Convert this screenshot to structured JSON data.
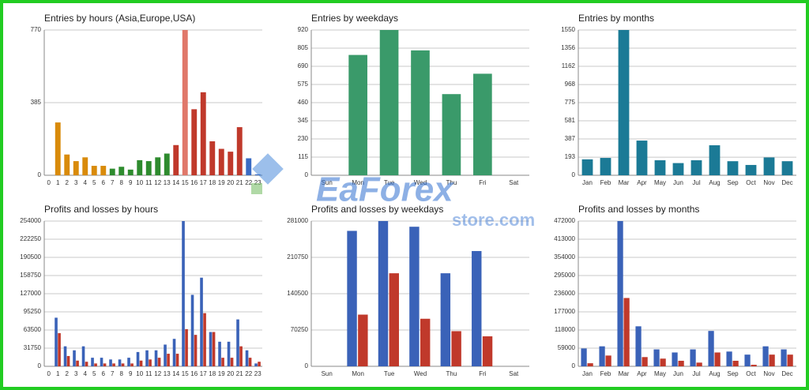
{
  "chart_data": [
    {
      "type": "bar",
      "title": "Entries by hours (Asia,Europe,USA)",
      "categories": [
        "0",
        "1",
        "2",
        "3",
        "4",
        "5",
        "6",
        "7",
        "8",
        "9",
        "10",
        "11",
        "12",
        "13",
        "14",
        "15",
        "16",
        "17",
        "18",
        "19",
        "20",
        "21",
        "22",
        "23"
      ],
      "values": [
        0,
        280,
        110,
        75,
        95,
        50,
        50,
        35,
        45,
        30,
        80,
        75,
        95,
        115,
        160,
        770,
        350,
        440,
        180,
        140,
        125,
        255,
        90,
        5
      ],
      "colors": [
        "#d98b0b",
        "#d98b0b",
        "#d98b0b",
        "#d98b0b",
        "#d98b0b",
        "#d98b0b",
        "#d98b0b",
        "#2e8b2e",
        "#2e8b2e",
        "#2e8b2e",
        "#2e8b2e",
        "#2e8b2e",
        "#2e8b2e",
        "#2e8b2e",
        "#c0392b",
        "#e0786a",
        "#c0392b",
        "#c0392b",
        "#c0392b",
        "#c0392b",
        "#c0392b",
        "#c0392b",
        "#3a6bc4",
        "#3a6bc4"
      ],
      "ylim": [
        0,
        770
      ],
      "yticks": [
        0,
        385,
        770
      ],
      "grid": true
    },
    {
      "type": "bar",
      "title": "Entries by weekdays",
      "categories": [
        "Sun",
        "Mon",
        "Tue",
        "Wed",
        "Thu",
        "Fri",
        "Sat"
      ],
      "values": [
        0,
        762,
        920,
        791,
        514,
        643,
        0
      ],
      "color": "#3a9a6a",
      "ylim": [
        0,
        920
      ],
      "yticks": [
        0,
        115,
        230,
        345,
        460,
        575,
        690,
        805,
        920
      ],
      "grid": true
    },
    {
      "type": "bar",
      "title": "Entries by months",
      "categories": [
        "Jan",
        "Feb",
        "Mar",
        "Apr",
        "May",
        "Jun",
        "Jul",
        "Aug",
        "Sep",
        "Oct",
        "Nov",
        "Dec"
      ],
      "values": [
        170,
        185,
        1550,
        370,
        160,
        130,
        160,
        320,
        150,
        110,
        190,
        150
      ],
      "color": "#1b7a96",
      "ylim": [
        0,
        1550
      ],
      "yticks": [
        0,
        193,
        387,
        581,
        775,
        968,
        1162,
        1356,
        1550
      ],
      "grid": true
    },
    {
      "type": "bar",
      "title": "Profits and losses by hours",
      "categories": [
        "0",
        "1",
        "2",
        "3",
        "4",
        "5",
        "6",
        "7",
        "8",
        "9",
        "10",
        "11",
        "12",
        "13",
        "14",
        "15",
        "16",
        "17",
        "18",
        "19",
        "20",
        "21",
        "22",
        "23"
      ],
      "series": [
        {
          "color": "#3a62b8",
          "values": [
            0,
            85000,
            35000,
            28000,
            35000,
            15000,
            15000,
            12000,
            12000,
            15000,
            25000,
            28000,
            28000,
            38000,
            48000,
            254000,
            125000,
            155000,
            60000,
            43000,
            43000,
            82000,
            28000,
            5000
          ]
        },
        {
          "color": "#c0392b",
          "values": [
            0,
            58000,
            18000,
            10000,
            8000,
            5000,
            5000,
            5000,
            5000,
            5000,
            10000,
            12000,
            15000,
            22000,
            22000,
            65000,
            55000,
            93000,
            60000,
            15000,
            15000,
            35000,
            15000,
            8000
          ]
        }
      ],
      "ylim": [
        0,
        254000
      ],
      "yticks": [
        0,
        31750,
        63500,
        95250,
        127000,
        158750,
        190500,
        222250,
        254000
      ],
      "grid": true
    },
    {
      "type": "bar",
      "title": "Profits and losses by weekdays",
      "categories": [
        "Sun",
        "Mon",
        "Tue",
        "Wed",
        "Thu",
        "Fri",
        "Sat"
      ],
      "series": [
        {
          "color": "#3a62b8",
          "values": [
            0,
            262000,
            281000,
            270000,
            180000,
            223000,
            0
          ]
        },
        {
          "color": "#c0392b",
          "values": [
            0,
            100000,
            180000,
            92000,
            68000,
            58000,
            0
          ]
        }
      ],
      "ylim": [
        0,
        281000
      ],
      "yticks": [
        0,
        70250,
        140500,
        210750,
        281000
      ],
      "grid": true
    },
    {
      "type": "bar",
      "title": "Profits and losses by months",
      "categories": [
        "Jan",
        "Feb",
        "Mar",
        "Apr",
        "May",
        "Jun",
        "Jul",
        "Aug",
        "Sep",
        "Oct",
        "Nov",
        "Dec"
      ],
      "series": [
        {
          "color": "#3a62b8",
          "values": [
            58000,
            65000,
            472000,
            130000,
            55000,
            45000,
            55000,
            115000,
            48000,
            38000,
            65000,
            55000
          ]
        },
        {
          "color": "#c0392b",
          "values": [
            10000,
            35000,
            222000,
            30000,
            25000,
            18000,
            12000,
            45000,
            18000,
            5000,
            38000,
            38000
          ]
        }
      ],
      "ylim": [
        0,
        472000
      ],
      "yticks": [
        0,
        59000,
        118000,
        177000,
        236000,
        295000,
        354000,
        413000,
        472000
      ],
      "grid": true
    }
  ],
  "watermark": {
    "brand": "EaForex",
    "domain": "store.com"
  }
}
